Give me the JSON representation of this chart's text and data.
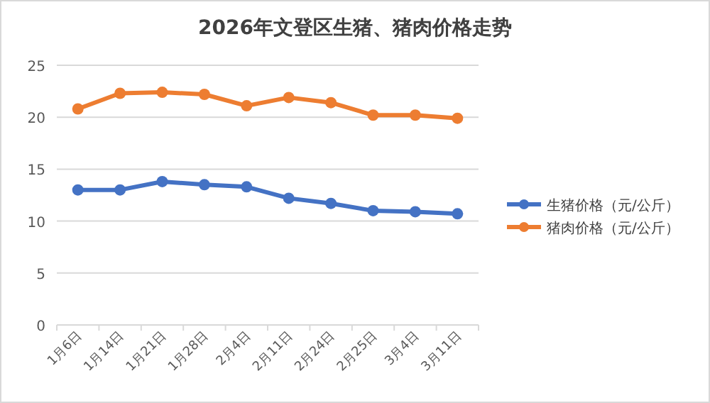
{
  "chart_data": {
    "type": "line",
    "title": "2026年文登区生猪、猪肉价格走势",
    "categories": [
      "1月6日",
      "1月14日",
      "1月21日",
      "1月28日",
      "2月4日",
      "2月11日",
      "2月24日",
      "2月25日",
      "3月4日",
      "3月11日"
    ],
    "series": [
      {
        "name": "生猪价格（元/公斤）",
        "color": "#4472c4",
        "values": [
          13.0,
          13.0,
          13.8,
          13.5,
          13.3,
          12.2,
          11.7,
          11.0,
          10.9,
          10.7
        ]
      },
      {
        "name": "猪肉价格（元/公斤）",
        "color": "#ed7d31",
        "values": [
          20.8,
          22.3,
          22.4,
          22.2,
          21.1,
          21.9,
          21.4,
          20.2,
          20.2,
          19.9
        ]
      }
    ],
    "ylim": [
      0,
      25
    ],
    "yticks": [
      0,
      5,
      10,
      15,
      20,
      25
    ],
    "grid": "y",
    "legend": "right",
    "marker": "circle",
    "line_style": "solid"
  }
}
